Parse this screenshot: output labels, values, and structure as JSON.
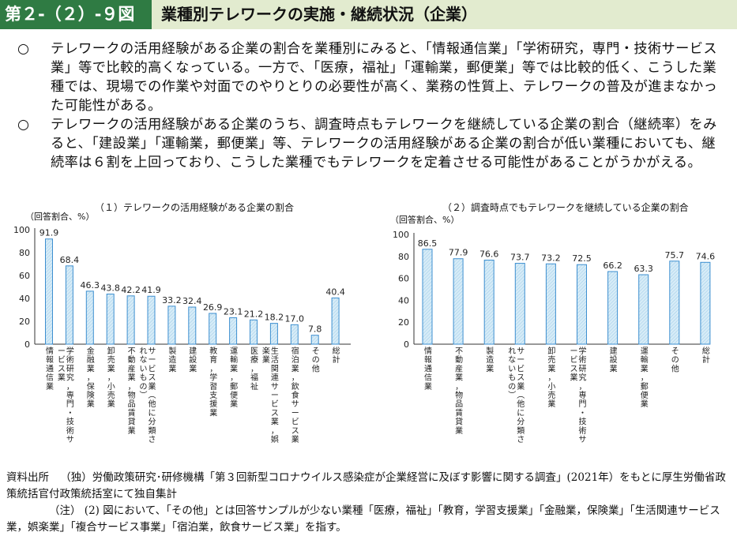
{
  "header": {
    "figure_label": "第２-（２）-９図",
    "title": "業種別テレワークの実施・継続状況（企業）"
  },
  "summary": {
    "bullet": "○",
    "p1": "テレワークの活用経験がある企業の割合を業種別にみると、「情報通信業」「学術研究，専門・技術サービス業」等で比較的高くなっている。一方で、「医療，福祉」「運輸業，郵便業」等では比較的低く、こうした業種では、現場での作業や対面でのやりとりの必要性が高く、業務の性質上、テレワークの普及が進まなかった可能性がある。",
    "p2": "テレワークの活用経験がある企業のうち、調査時点もテレワークを継続している企業の割合（継続率）をみると、「建設業」「運輸業，郵便業」等、テレワークの活用経験がある企業の割合が低い業種においても、継続率は６割を上回っており、こうした業種でもテレワークを定着させる可能性があることがうかがえる。"
  },
  "chart_data": [
    {
      "type": "bar",
      "title": "（１）テレワークの活用経験がある企業の割合",
      "ylabel": "（回答割合、%）",
      "ylim": [
        0,
        100
      ],
      "yticks": [
        "0",
        "20",
        "40",
        "60",
        "80",
        "100"
      ],
      "categories": [
        "情報通信業",
        "学術研究，専門・技術サービス業",
        "金融業，保険業",
        "卸売業，小売業",
        "不動産業，物品賃貸業",
        "サービス業（他に分類されないもの）",
        "製造業",
        "建設業",
        "教育，学習支援業",
        "運輸業，郵便業",
        "医療，福祉",
        "生活関連サービス業，娯楽業",
        "宿泊業，飲食サービス業",
        "その他",
        "総計"
      ],
      "values": [
        91.9,
        68.4,
        46.3,
        43.8,
        42.2,
        41.9,
        33.2,
        32.4,
        26.9,
        23.1,
        21.2,
        18.2,
        17.0,
        7.8,
        40.4
      ],
      "value_labels": [
        "91.9",
        "68.4",
        "46.3",
        "43.8",
        "42.2",
        "41.9",
        "33.2",
        "32.4",
        "26.9",
        "23.1",
        "21.2",
        "18.2",
        "17.0",
        "7.8",
        "40.4"
      ]
    },
    {
      "type": "bar",
      "title": "（２）調査時点でもテレワークを継続している企業の割合",
      "ylabel": "（回答割合、%）",
      "ylim": [
        0,
        100
      ],
      "yticks": [
        "0",
        "20",
        "40",
        "60",
        "80",
        "100"
      ],
      "categories": [
        "情報通信業",
        "不動産業，物品賃貸業",
        "製造業",
        "サービス業（他に分類されないもの）",
        "卸売業，小売業",
        "学術研究，専門・技術サービス業",
        "建設業",
        "運輸業，郵便業",
        "その他",
        "総計"
      ],
      "values": [
        86.5,
        77.9,
        76.6,
        73.7,
        73.2,
        72.5,
        66.2,
        63.3,
        75.7,
        74.6
      ],
      "value_labels": [
        "86.5",
        "77.9",
        "76.6",
        "73.7",
        "73.2",
        "72.5",
        "66.2",
        "63.3",
        "75.7",
        "74.6"
      ]
    }
  ],
  "source": {
    "label": "資料出所",
    "text": "（独）労働政策研究･研修機構「第３回新型コロナウイルス感染症が企業経営に及ぼす影響に関する調査」(2021年）をもとに厚生労働省政策統括官付政策統括室にて独自集計"
  },
  "note": {
    "label": "（注）",
    "text": "(2) 図において、「その他」とは回答サンプルが少ない業種「医療，福祉」「教育，学習支援業」「金融業，保険業」「生活関連サービス業，娯楽業」「複合サービス事業」「宿泊業，飲食サービス業」を指す。"
  },
  "colors": {
    "header_band": "#e2ebcf",
    "label_bg": "#2f7b43",
    "bar_fill": "#d7ecf7",
    "bar_stroke": "#3d8fd0",
    "axis": "#333333"
  }
}
